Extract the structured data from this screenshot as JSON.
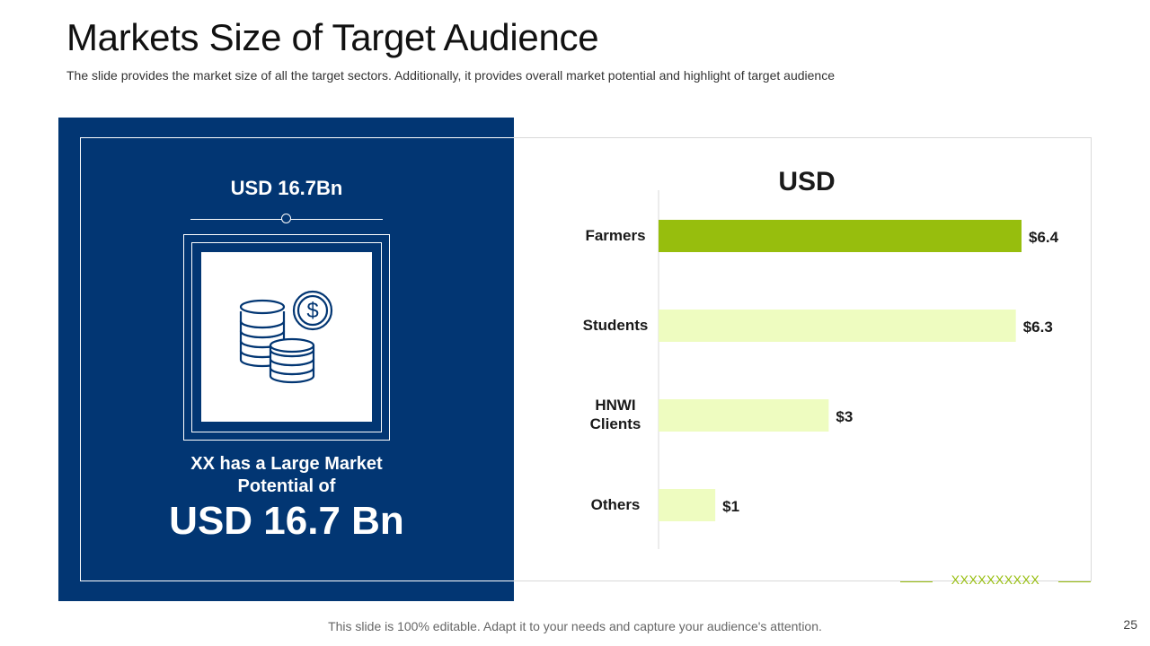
{
  "slide": {
    "title": "Markets Size of Target Audience",
    "subtitle": "The slide provides the market size of all the target sectors. Additionally,  it provides overall market potential and highlight  of target audience",
    "footer": "This slide is 100% editable. Adapt it to your needs and capture your audience's attention.",
    "page_number": "25"
  },
  "panel": {
    "top_value": "USD 16.7Bn",
    "potential_text": "XX has a Large Market Potential of",
    "big_value": "USD 16.7 Bn",
    "icon": "coins-dollar-icon"
  },
  "legend": {
    "text": "XXXXXXXXXX"
  },
  "colors": {
    "navy": "#023673",
    "accent_green": "#97be0d",
    "light_green": "#eefcc0"
  },
  "chart_data": {
    "type": "bar",
    "orientation": "horizontal",
    "title": "USD",
    "categories": [
      "Farmers",
      "Students",
      "HNWI Clients",
      "Others"
    ],
    "values": [
      6.4,
      6.3,
      3,
      1
    ],
    "labels": [
      "$6.4",
      "$6.3",
      "$3",
      "$1"
    ],
    "highlight_index": 0,
    "xlim": [
      0,
      6.4
    ],
    "xlabel": "",
    "ylabel": ""
  }
}
